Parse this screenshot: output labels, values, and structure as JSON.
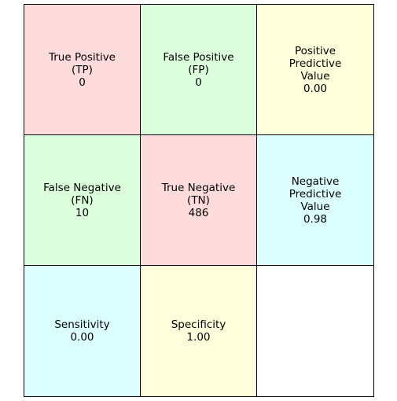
{
  "colors": {
    "tp": "#ffdcdc",
    "fp": "#dcffdc",
    "ppv": "#ffffdc",
    "fn": "#dcffdc",
    "tn": "#ffdcdc",
    "npv": "#dcffff",
    "sens": "#dcffff",
    "spec": "#ffffdc",
    "empty": "#ffffff"
  },
  "cells": {
    "tp": {
      "lines": [
        "True Positive",
        "(TP)",
        "0"
      ]
    },
    "fp": {
      "lines": [
        "False Positive",
        "(FP)",
        "0"
      ]
    },
    "ppv": {
      "lines": [
        "Positive",
        "Predictive",
        "Value",
        "0.00"
      ]
    },
    "fn": {
      "lines": [
        "False Negative",
        "(FN)",
        "10"
      ]
    },
    "tn": {
      "lines": [
        "True Negative",
        "(TN)",
        "486"
      ]
    },
    "npv": {
      "lines": [
        "Negative",
        "Predictive",
        "Value",
        "0.98"
      ]
    },
    "sens": {
      "lines": [
        "Sensitivity",
        "0.00"
      ]
    },
    "spec": {
      "lines": [
        "Specificity",
        "1.00"
      ]
    }
  }
}
